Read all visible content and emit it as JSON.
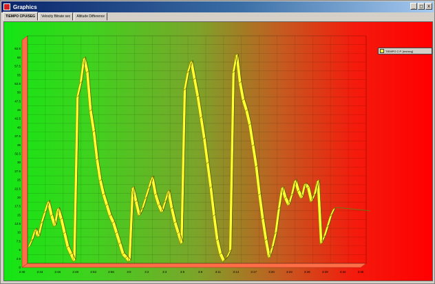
{
  "window": {
    "title": "Graphics",
    "controls": {
      "minimize": "_",
      "maximize": "□",
      "close": "x"
    }
  },
  "tabs": [
    {
      "label": "TIEMPO CPU/SEG",
      "active": true
    },
    {
      "label": "Velocity Bitrate sec",
      "active": false
    },
    {
      "label": "Altitude Difference",
      "active": false
    }
  ],
  "legend": {
    "label": "TIEMPO C.P. [ms/seg]",
    "color": "#ffff33"
  },
  "colors": {
    "series_fill": "#ffff33",
    "series_dark": "#8a8a00",
    "floor": "#ff6e47",
    "left_wall": "#ff6e47",
    "gradient_start": "#14e614",
    "gradient_end": "#ff0000"
  },
  "chart_data": {
    "type": "line",
    "title": "",
    "xlabel": "",
    "ylabel": "",
    "grid": true,
    "legend": "top-right",
    "ylim": [
      0,
      65
    ],
    "y_ticks": [
      "0",
      "2.5",
      "5",
      "7.5",
      "10",
      "12.5",
      "15",
      "17.5",
      "20",
      "22.5",
      "25",
      "27.5",
      "30",
      "32.5",
      "35",
      "37.5",
      "40",
      "42.5",
      "45",
      "47.5",
      "50",
      "52.5",
      "55",
      "57.5",
      "60",
      "62.5"
    ],
    "x_ticks": [
      "2:40",
      "2:43",
      "2:46",
      "2:49",
      "2:53",
      "2:56",
      "3:0",
      "3:2",
      "3:3",
      "3:5",
      "3:8",
      "3:11",
      "3:14",
      "3:17",
      "3:20",
      "3:23",
      "3:26",
      "3:29",
      "3:32",
      "3:35"
    ],
    "series": [
      {
        "name": "TIEMPO C.P. [ms/seg]",
        "values": [
          5,
          7,
          10,
          8,
          12,
          15,
          18,
          14,
          11,
          16,
          13,
          9,
          5,
          3,
          1,
          48,
          52,
          59,
          55,
          44,
          38,
          30,
          24,
          20,
          17,
          14,
          12,
          9,
          6,
          3,
          2,
          1,
          22,
          18,
          14,
          16,
          19,
          22,
          25,
          20,
          17,
          15,
          18,
          21,
          16,
          12,
          9,
          6,
          50,
          55,
          58,
          53,
          48,
          42,
          36,
          29,
          22,
          14,
          7,
          3,
          1,
          2,
          4,
          55,
          60,
          52,
          47,
          44,
          40,
          34,
          28,
          20,
          13,
          7,
          2,
          5,
          9,
          16,
          22,
          19,
          17,
          20,
          24,
          21,
          19,
          23,
          22,
          18,
          20,
          24,
          6,
          8,
          11,
          14,
          16
        ]
      }
    ]
  }
}
